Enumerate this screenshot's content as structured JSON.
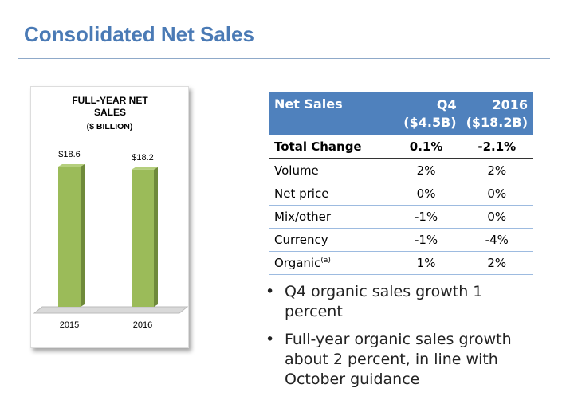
{
  "header": {
    "title": "Consolidated Net Sales"
  },
  "chart_data": {
    "type": "bar",
    "title": "FULL-YEAR NET SALES",
    "subtitle": "($ BILLION)",
    "categories": [
      "2015",
      "2016"
    ],
    "values": [
      18.6,
      18.2
    ],
    "value_labels": [
      "$18.6",
      "$18.2"
    ],
    "color": "#9bbb59"
  },
  "table": {
    "columns": [
      "Net Sales",
      "Q4 ($4.5B)",
      "2016 ($18.2B)"
    ],
    "rows": [
      {
        "label": "Total Change",
        "values": [
          "0.1%",
          "-2.1%"
        ]
      },
      {
        "label": "Volume",
        "values": [
          "2%",
          "2%"
        ]
      },
      {
        "label": "Net price",
        "values": [
          "0%",
          "0%"
        ]
      },
      {
        "label": "Mix/other",
        "values": [
          "-1%",
          "0%"
        ]
      },
      {
        "label": "Currency",
        "values": [
          "-1%",
          "-4%"
        ]
      },
      {
        "label": "Organic",
        "note": "(a)",
        "values": [
          "1%",
          "2%"
        ]
      }
    ]
  },
  "bullets": [
    "Q4 organic sales growth 1 percent",
    "Full-year organic sales growth about 2 percent, in line with October guidance"
  ]
}
